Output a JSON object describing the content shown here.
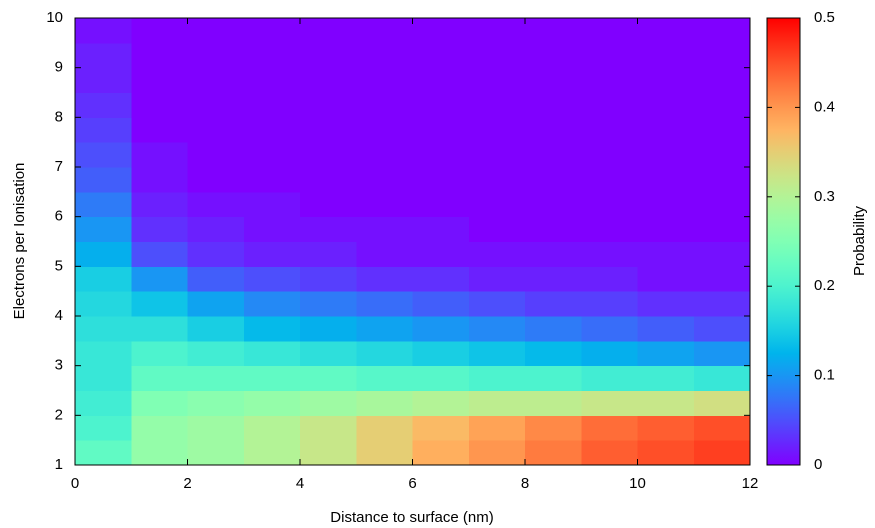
{
  "chart_data": {
    "type": "heatmap",
    "x_label": "Distance to surface (nm)",
    "y_label": "Electrons per Ionisation",
    "colorbar_label": "Probability",
    "palette": "rainbow",
    "x": [
      0.5,
      1.5,
      2.5,
      3.5,
      4.5,
      5.5,
      6.5,
      7.5,
      8.5,
      9.5,
      10.5,
      11.5
    ],
    "y": [
      1.25,
      1.75,
      2.25,
      2.75,
      3.25,
      3.75,
      4.25,
      4.75,
      5.25,
      5.75,
      6.25,
      6.75,
      7.25,
      7.75,
      8.25,
      8.75,
      9.25,
      9.75
    ],
    "z": [
      [
        0.22,
        0.27,
        0.28,
        0.3,
        0.32,
        0.35,
        0.38,
        0.4,
        0.42,
        0.44,
        0.45,
        0.46
      ],
      [
        0.2,
        0.27,
        0.28,
        0.3,
        0.32,
        0.35,
        0.37,
        0.39,
        0.41,
        0.43,
        0.44,
        0.45
      ],
      [
        0.19,
        0.25,
        0.26,
        0.27,
        0.28,
        0.29,
        0.3,
        0.31,
        0.31,
        0.32,
        0.32,
        0.33
      ],
      [
        0.18,
        0.22,
        0.22,
        0.22,
        0.22,
        0.21,
        0.21,
        0.2,
        0.2,
        0.19,
        0.19,
        0.18
      ],
      [
        0.18,
        0.2,
        0.19,
        0.18,
        0.17,
        0.16,
        0.15,
        0.14,
        0.13,
        0.12,
        0.11,
        0.1
      ],
      [
        0.17,
        0.17,
        0.15,
        0.13,
        0.12,
        0.11,
        0.1,
        0.09,
        0.08,
        0.07,
        0.06,
        0.05
      ],
      [
        0.16,
        0.14,
        0.11,
        0.09,
        0.08,
        0.07,
        0.06,
        0.05,
        0.04,
        0.04,
        0.03,
        0.03
      ],
      [
        0.15,
        0.1,
        0.06,
        0.05,
        0.04,
        0.03,
        0.03,
        0.02,
        0.02,
        0.02,
        0.01,
        0.01
      ],
      [
        0.12,
        0.05,
        0.03,
        0.02,
        0.02,
        0.01,
        0.01,
        0.01,
        0.01,
        0.01,
        0.01,
        0.01
      ],
      [
        0.1,
        0.03,
        0.02,
        0.01,
        0.01,
        0.01,
        0.01,
        0,
        0,
        0,
        0,
        0
      ],
      [
        0.08,
        0.02,
        0.01,
        0.01,
        0,
        0,
        0,
        0,
        0,
        0,
        0,
        0
      ],
      [
        0.06,
        0.01,
        0,
        0,
        0,
        0,
        0,
        0,
        0,
        0,
        0,
        0
      ],
      [
        0.05,
        0.01,
        0,
        0,
        0,
        0,
        0,
        0,
        0,
        0,
        0,
        0
      ],
      [
        0.04,
        0,
        0,
        0,
        0,
        0,
        0,
        0,
        0,
        0,
        0,
        0
      ],
      [
        0.03,
        0,
        0,
        0,
        0,
        0,
        0,
        0,
        0,
        0,
        0,
        0
      ],
      [
        0.02,
        0,
        0,
        0,
        0,
        0,
        0,
        0,
        0,
        0,
        0,
        0
      ],
      [
        0.02,
        0,
        0,
        0,
        0,
        0,
        0,
        0,
        0,
        0,
        0,
        0
      ],
      [
        0.01,
        0,
        0,
        0,
        0,
        0,
        0,
        0,
        0,
        0,
        0,
        0
      ]
    ],
    "xlim": [
      0,
      12
    ],
    "xticks": [
      0,
      2,
      4,
      6,
      8,
      10,
      12
    ],
    "ylim": [
      1,
      10
    ],
    "yticks": [
      1,
      2,
      3,
      4,
      5,
      6,
      7,
      8,
      9,
      10
    ],
    "zlim": [
      0,
      0.5
    ],
    "zticks": [
      0,
      0.1,
      0.2,
      0.3,
      0.4,
      0.5
    ]
  }
}
